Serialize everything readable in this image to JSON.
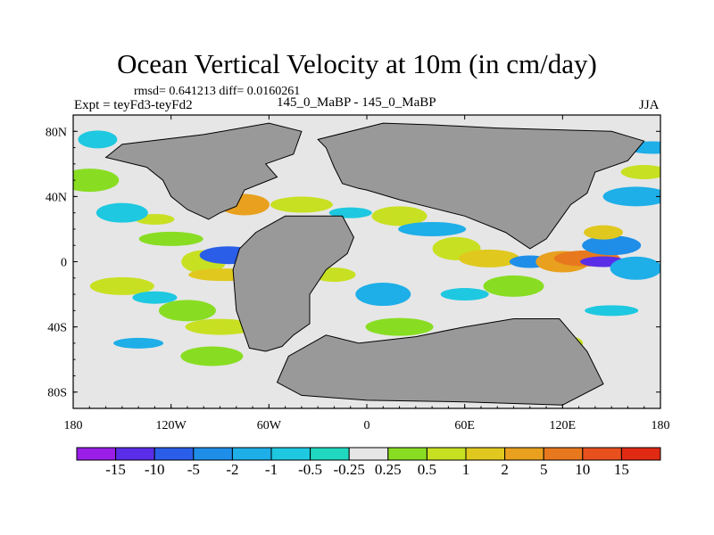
{
  "title": "Ocean Vertical Velocity at 10m (in cm/day)",
  "stats_text": "rmsd= 0.641213 diff= 0.0160261",
  "left_label": "Expt = teyFd3-teyFd2",
  "center_label": "145_0_MaBP - 145_0_MaBP",
  "right_label": "JJA",
  "chart_data": {
    "type": "heatmap",
    "title": "Ocean Vertical Velocity at 10m (in cm/day)",
    "projection": "cylindrical equidistant",
    "x_range": [
      -180,
      180
    ],
    "y_range": [
      -90,
      90
    ],
    "x_ticks": [
      {
        "value": -180,
        "label": "180"
      },
      {
        "value": -120,
        "label": "120W"
      },
      {
        "value": -60,
        "label": "60W"
      },
      {
        "value": 0,
        "label": "0"
      },
      {
        "value": 60,
        "label": "60E"
      },
      {
        "value": 120,
        "label": "120E"
      },
      {
        "value": 180,
        "label": "180"
      }
    ],
    "y_ticks": [
      {
        "value": 80,
        "label": "80N"
      },
      {
        "value": 40,
        "label": "40N"
      },
      {
        "value": 0,
        "label": "0"
      },
      {
        "value": -40,
        "label": "40S"
      },
      {
        "value": -80,
        "label": "80S"
      }
    ],
    "colorbar": {
      "labels": [
        "-15",
        "-10",
        "-5",
        "-2",
        "-1",
        "-0.5",
        "-0.25",
        "0.25",
        "0.5",
        "1",
        "2",
        "5",
        "10",
        "15"
      ],
      "colors": [
        "#9a1ee8",
        "#5a2ee8",
        "#2a5ee8",
        "#1e8ee8",
        "#1eaee8",
        "#1ec8e0",
        "#20d8c0",
        "#e6e6e6",
        "#88dd22",
        "#c8e022",
        "#e0c81e",
        "#e8a01e",
        "#e8781e",
        "#e8501e",
        "#e02a14"
      ]
    },
    "land_color": "#999999",
    "ocean_fill": "#e6e6e6",
    "land_masses": [
      {
        "name": "north-america",
        "points": [
          [
            -100,
            78
          ],
          [
            -60,
            85
          ],
          [
            -40,
            80
          ],
          [
            -45,
            66
          ],
          [
            -62,
            60
          ],
          [
            -55,
            52
          ],
          [
            -75,
            44
          ],
          [
            -80,
            34
          ],
          [
            -90,
            30
          ],
          [
            -97,
            26
          ],
          [
            -110,
            32
          ],
          [
            -120,
            40
          ],
          [
            -125,
            50
          ],
          [
            -135,
            58
          ],
          [
            -160,
            64
          ],
          [
            -150,
            72
          ]
        ]
      },
      {
        "name": "south-america",
        "points": [
          [
            -50,
            28
          ],
          [
            -15,
            28
          ],
          [
            -8,
            15
          ],
          [
            -12,
            5
          ],
          [
            -25,
            -5
          ],
          [
            -35,
            -20
          ],
          [
            -35,
            -38
          ],
          [
            -45,
            -45
          ],
          [
            -52,
            -52
          ],
          [
            -62,
            -55
          ],
          [
            -72,
            -53
          ],
          [
            -80,
            -30
          ],
          [
            -82,
            -5
          ],
          [
            -78,
            8
          ],
          [
            -68,
            18
          ]
        ]
      },
      {
        "name": "eurasia",
        "points": [
          [
            -30,
            75
          ],
          [
            10,
            85
          ],
          [
            40,
            84
          ],
          [
            80,
            82
          ],
          [
            150,
            80
          ],
          [
            170,
            74
          ],
          [
            160,
            62
          ],
          [
            140,
            55
          ],
          [
            135,
            42
          ],
          [
            125,
            35
          ],
          [
            110,
            14
          ],
          [
            100,
            8
          ],
          [
            85,
            18
          ],
          [
            60,
            28
          ],
          [
            40,
            33
          ],
          [
            20,
            38
          ],
          [
            0,
            44
          ],
          [
            -5,
            45
          ],
          [
            -15,
            48
          ],
          [
            -20,
            58
          ],
          [
            -25,
            70
          ]
        ]
      },
      {
        "name": "africa-antarctica",
        "points": [
          [
            -25,
            -45
          ],
          [
            -5,
            -50
          ],
          [
            30,
            -46
          ],
          [
            60,
            -40
          ],
          [
            90,
            -35
          ],
          [
            118,
            -35
          ],
          [
            135,
            -55
          ],
          [
            145,
            -75
          ],
          [
            120,
            -88
          ],
          [
            60,
            -86
          ],
          [
            0,
            -85
          ],
          [
            -40,
            -82
          ],
          [
            -55,
            -74
          ],
          [
            -48,
            -58
          ]
        ]
      }
    ],
    "anomaly_blobs": [
      {
        "lon": -130,
        "lat": 26,
        "value": 1
      },
      {
        "lon": -150,
        "lat": 30,
        "value": -0.5
      },
      {
        "lon": -120,
        "lat": 14,
        "value": 0.5
      },
      {
        "lon": -100,
        "lat": 0,
        "value": 1
      },
      {
        "lon": -85,
        "lat": 4,
        "value": -5
      },
      {
        "lon": -88,
        "lat": -8,
        "value": 2
      },
      {
        "lon": -75,
        "lat": 35,
        "value": 5
      },
      {
        "lon": -40,
        "lat": 35,
        "value": 1
      },
      {
        "lon": -10,
        "lat": 30,
        "value": -0.5
      },
      {
        "lon": 20,
        "lat": 28,
        "value": 1
      },
      {
        "lon": 40,
        "lat": 20,
        "value": -1
      },
      {
        "lon": 55,
        "lat": 8,
        "value": 1
      },
      {
        "lon": 75,
        "lat": 2,
        "value": 2
      },
      {
        "lon": 100,
        "lat": 0,
        "value": -2
      },
      {
        "lon": 120,
        "lat": 0,
        "value": 5
      },
      {
        "lon": 135,
        "lat": 2,
        "value": 10
      },
      {
        "lon": 145,
        "lat": 0,
        "value": -10
      },
      {
        "lon": 150,
        "lat": 10,
        "value": -2
      },
      {
        "lon": 145,
        "lat": 18,
        "value": 2
      },
      {
        "lon": 165,
        "lat": -4,
        "value": -1
      },
      {
        "lon": -150,
        "lat": -15,
        "value": 1
      },
      {
        "lon": -130,
        "lat": -22,
        "value": -0.5
      },
      {
        "lon": -110,
        "lat": -30,
        "value": 0.5
      },
      {
        "lon": -90,
        "lat": -40,
        "value": 1
      },
      {
        "lon": -140,
        "lat": -50,
        "value": -1
      },
      {
        "lon": -95,
        "lat": -58,
        "value": 0.5
      },
      {
        "lon": -20,
        "lat": -8,
        "value": 1
      },
      {
        "lon": 10,
        "lat": -20,
        "value": -1
      },
      {
        "lon": 20,
        "lat": -40,
        "value": 0.5
      },
      {
        "lon": 60,
        "lat": -20,
        "value": -0.5
      },
      {
        "lon": 90,
        "lat": -15,
        "value": 0.5
      },
      {
        "lon": 120,
        "lat": -50,
        "value": 1
      },
      {
        "lon": 150,
        "lat": -30,
        "value": -0.5
      },
      {
        "lon": 165,
        "lat": 40,
        "value": -1
      },
      {
        "lon": 170,
        "lat": 55,
        "value": 1
      },
      {
        "lon": -170,
        "lat": 50,
        "value": 0.5
      },
      {
        "lon": -165,
        "lat": 75,
        "value": -0.5
      },
      {
        "lon": 175,
        "lat": 70,
        "value": -1
      }
    ]
  }
}
